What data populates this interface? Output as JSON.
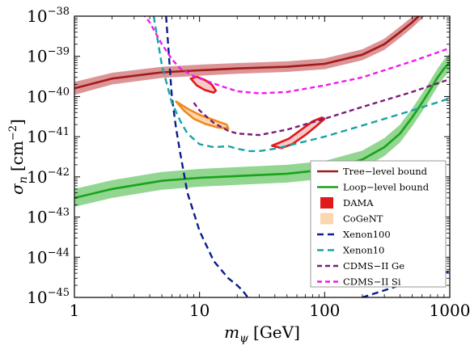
{
  "chart_data": {
    "type": "line",
    "title": "",
    "xlabel": {
      "var": "m",
      "sub": "ψ",
      "unit": "[GeV]"
    },
    "ylabel": {
      "var": "σ",
      "sub": "n",
      "unit": "[cm",
      "unit_exp": "−2",
      "unit_close": "]"
    },
    "x_scale": "log",
    "y_scale": "log",
    "xlim": [
      1,
      1000
    ],
    "ylim": [
      1e-45,
      1e-38
    ],
    "x_ticks": [
      {
        "value": 1,
        "label": "1"
      },
      {
        "value": 10,
        "label": "10"
      },
      {
        "value": 100,
        "label": "100"
      },
      {
        "value": 1000,
        "label": "1000"
      }
    ],
    "y_ticks": [
      {
        "value": 1e-45,
        "base": "10",
        "exp": "−45"
      },
      {
        "value": 1e-44,
        "base": "10",
        "exp": "−44"
      },
      {
        "value": 1e-43,
        "base": "10",
        "exp": "−43"
      },
      {
        "value": 1e-42,
        "base": "10",
        "exp": "−42"
      },
      {
        "value": 1e-41,
        "base": "10",
        "exp": "−41"
      },
      {
        "value": 1e-40,
        "base": "10",
        "exp": "−40"
      },
      {
        "value": 1e-39,
        "base": "10",
        "exp": "−39"
      },
      {
        "value": 1e-38,
        "base": "10",
        "exp": "−38"
      }
    ],
    "grid": false,
    "legend_position": "bottom-right",
    "series": [
      {
        "name": "Tree−level bound",
        "kind": "band_line",
        "color": "#a31919",
        "band_color": "#d8898b",
        "x": [
          1,
          2,
          5,
          10,
          20,
          50,
          100,
          200,
          300,
          400,
          500,
          600,
          700
        ],
        "y": [
          1.6e-40,
          2.8e-40,
          4e-40,
          4.5e-40,
          5e-40,
          5.5e-40,
          6.5e-40,
          1.1e-39,
          2e-39,
          4e-39,
          7e-39,
          1.2e-38,
          2e-38
        ],
        "band_lower": [
          1.1e-40,
          2e-40,
          2.9e-40,
          3.3e-40,
          3.7e-40,
          4.1e-40,
          4.8e-40,
          8e-40,
          1.45e-39,
          2.9e-39,
          5.1e-39,
          8.7e-39,
          1.45e-38
        ],
        "band_upper": [
          2.3e-40,
          3.9e-40,
          5.5e-40,
          6.2e-40,
          6.8e-40,
          7.5e-40,
          8.9e-40,
          1.5e-39,
          2.75e-39,
          5.5e-39,
          9.6e-39,
          1.65e-38,
          2.75e-38
        ]
      },
      {
        "name": "Loop−level bound",
        "kind": "band_line",
        "color": "#19a319",
        "band_color": "#86d186",
        "x": [
          1,
          2,
          5,
          10,
          20,
          50,
          100,
          200,
          300,
          400,
          500,
          600,
          700,
          800,
          900,
          1000
        ],
        "y": [
          3e-43,
          5e-43,
          8e-43,
          9.5e-43,
          1.05e-42,
          1.2e-42,
          1.5e-42,
          2.7e-42,
          5.5e-42,
          1.2e-41,
          3e-41,
          7e-41,
          1.5e-40,
          3e-40,
          5e-40,
          7e-40
        ],
        "band_lower": [
          1.8e-43,
          3e-43,
          4.8e-43,
          5.7e-43,
          6.3e-43,
          7.2e-43,
          9e-43,
          1.62e-42,
          3.3e-42,
          7.2e-42,
          1.8e-41,
          4.2e-41,
          9e-41,
          1.8e-40,
          3e-40,
          4.2e-40
        ],
        "band_upper": [
          5e-43,
          8.3e-43,
          1.33e-42,
          1.58e-42,
          1.75e-42,
          2e-42,
          2.5e-42,
          4.5e-42,
          9.2e-42,
          2e-41,
          5e-41,
          1.17e-40,
          2.5e-40,
          5e-40,
          8.3e-40,
          1.17e-39
        ]
      },
      {
        "name": "DAMA",
        "kind": "regions",
        "color": "#e01a1a",
        "fill": "#f7c9c9",
        "regions": [
          {
            "x": [
              8.5,
              9.5,
              11,
              12.5,
              13.5,
              13,
              11,
              9.5,
              8.5
            ],
            "y": [
              2.8e-40,
              3.1e-40,
              2.6e-40,
              2e-40,
              1.4e-40,
              1.25e-40,
              1.45e-40,
              1.9e-40,
              2.8e-40
            ]
          },
          {
            "x": [
              38,
              45,
              55,
              70,
              85,
              100,
              95,
              80,
              65,
              52,
              42,
              38
            ],
            "y": [
              6e-42,
              5.2e-42,
              6.5e-42,
              1.1e-41,
              1.8e-41,
              2.8e-41,
              3e-41,
              2.4e-41,
              1.5e-41,
              9e-42,
              6.8e-42,
              6e-42
            ]
          }
        ]
      },
      {
        "name": "CoGeNT",
        "kind": "regions",
        "color": "#f08a1a",
        "fill": "#fbd6b0",
        "regions": [
          {
            "x": [
              6.5,
              7.5,
              9,
              11,
              14,
              17,
              16.5,
              13,
              10,
              8,
              7,
              6.5
            ],
            "y": [
              7.5e-41,
              4.5e-41,
              2.8e-41,
              2.1e-41,
              1.7e-41,
              1.6e-41,
              2e-41,
              2.6e-41,
              3.5e-41,
              5e-41,
              6.5e-41,
              7.5e-41
            ]
          }
        ]
      },
      {
        "name": "Xenon100",
        "kind": "line",
        "color": "#0a1e8c",
        "dash": "8,5",
        "x": [
          5.4,
          5.7,
          6,
          6.5,
          7,
          8,
          10,
          13,
          17,
          20,
          22,
          25,
          30,
          40,
          50,
          60,
          100,
          200,
          500,
          1000
        ],
        "y": [
          1e-38,
          1e-39,
          1e-40,
          1.6e-41,
          4e-42,
          4e-43,
          4.5e-44,
          8e-45,
          3e-45,
          2e-45,
          1.5e-45,
          9e-46,
          6e-46,
          5e-46,
          4.8e-46,
          5e-46,
          6e-46,
          1e-45,
          2.5e-45,
          4.5e-45
        ]
      },
      {
        "name": "Xenon10",
        "kind": "line",
        "color": "#1aa3a3",
        "dash": "8,5",
        "x": [
          4.3,
          5,
          6,
          7,
          8,
          10,
          13,
          17,
          20,
          25,
          30,
          40,
          60,
          100,
          200,
          500,
          1000
        ],
        "y": [
          1e-38,
          6e-40,
          7e-41,
          2.5e-41,
          1.2e-41,
          6.5e-42,
          5.5e-42,
          5.8e-42,
          5e-42,
          4.4e-42,
          4.4e-42,
          5e-42,
          6.8e-42,
          1e-41,
          1.9e-41,
          4.5e-41,
          9e-41
        ]
      },
      {
        "name": "CDMS−II Ge",
        "kind": "line",
        "color": "#7a1a7a",
        "dash": "6,4",
        "x": [
          9,
          10,
          13,
          17,
          20,
          30,
          50,
          100,
          200,
          500,
          1000
        ],
        "y": [
          7e-41,
          4.5e-41,
          2.2e-41,
          1.4e-41,
          1.2e-41,
          1.1e-41,
          1.5e-41,
          2.8e-41,
          5.5e-41,
          1.3e-40,
          2.7e-40
        ]
      },
      {
        "name": "CDMS−II Si",
        "kind": "line",
        "color": "#f01aef",
        "dash": "6,4",
        "x": [
          3.5,
          4,
          5,
          6,
          7,
          9,
          12,
          15,
          20,
          30,
          50,
          100,
          200,
          500,
          1000
        ],
        "y": [
          1.2e-38,
          7e-39,
          2e-39,
          8.5e-40,
          5e-40,
          3.2e-40,
          2.3e-40,
          1.8e-40,
          1.35e-40,
          1.2e-40,
          1.3e-40,
          1.9e-40,
          3e-40,
          7.5e-40,
          1.6e-39
        ]
      }
    ]
  }
}
